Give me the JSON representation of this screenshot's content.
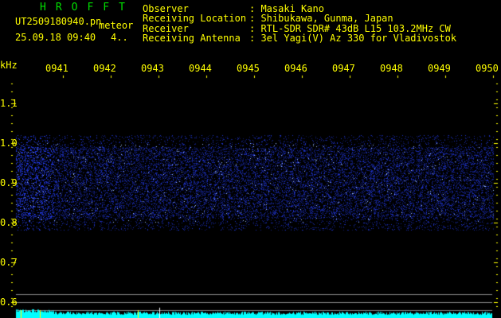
{
  "header": {
    "brand": "HROFFT",
    "filename": "UT2509180940.pn",
    "mode": "meteor",
    "datetime": "25.09.18 09:40",
    "value": "4..",
    "info": [
      {
        "label": "Observer",
        "value": ": Masaki Kano"
      },
      {
        "label": "Receiving Location",
        "value": ": Shibukawa, Gunma, Japan"
      },
      {
        "label": "Receiver",
        "value": ": RTL-SDR SDR# 43dB L15 103.2MHz CW"
      },
      {
        "label": "Receiving Antenna",
        "value": ": 3el Yagi(V) Az 330 for Vladivostok"
      }
    ]
  },
  "axis": {
    "unit": "kHz",
    "time_labels": [
      "0941",
      "0942",
      "0943",
      "0944",
      "0945",
      "0946",
      "0947",
      "0948",
      "0949",
      "0950"
    ],
    "freq_labels": [
      "1.1",
      "1.0",
      "0.9",
      "0.8",
      "0.7",
      "0.6"
    ]
  },
  "colors": {
    "text": "#ffff00",
    "brand": "#00e000",
    "signal": "#2040ff",
    "bar": "#00ffff",
    "grid": "#808080"
  }
}
